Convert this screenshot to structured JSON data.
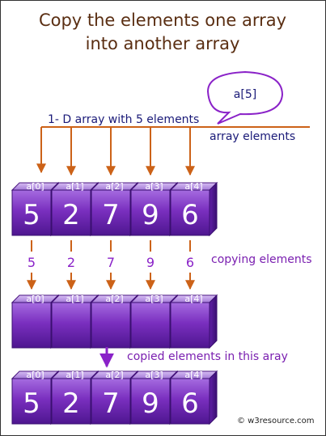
{
  "title": {
    "line1": "Copy the elements one array",
    "line2": "into another array"
  },
  "bubble_label": "a[5]",
  "array_caption": "1- D array with 5 elements",
  "array_elements_label": "array elements",
  "copying_label": "copying elements",
  "copied_label": "copied elements in this aray",
  "credit": "© w3resource.com",
  "indices": [
    "a[0]",
    "a[1]",
    "a[2]",
    "a[3]",
    "a[4]"
  ],
  "source_values": [
    "5",
    "2",
    "7",
    "9",
    "6"
  ],
  "copy_values": [
    "5",
    "2",
    "7",
    "9",
    "6"
  ],
  "dest_empty_values": [
    "",
    "",
    "",
    "",
    ""
  ],
  "result_values": [
    "5",
    "2",
    "7",
    "9",
    "6"
  ],
  "colors": {
    "title": "#5a2e12",
    "arrow_orange": "#cc6218",
    "accent_purple": "#8a22c8",
    "caption_navy": "#1a1a78",
    "box_face": "#7a2fbf",
    "box_top": "#b48ae0",
    "box_side": "#4a1580"
  }
}
